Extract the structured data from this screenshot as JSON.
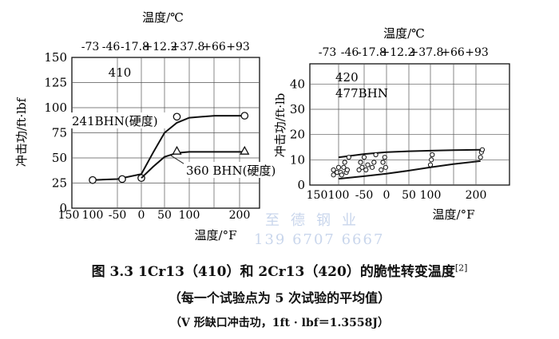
{
  "chart_data": [
    {
      "type": "line",
      "top_axis_label": "温度/℃",
      "top_ticks": [
        "-73",
        "-46",
        "-17.8",
        "+12.2",
        "+37.8",
        "+66",
        "+93"
      ],
      "xlabel": "温度/°F",
      "ylabel": "冲击功/ft·lbf",
      "x_ticks": [
        "150",
        "100",
        "-50",
        "0",
        "50",
        "100",
        "200"
      ],
      "y_ticks": [
        0,
        25,
        50,
        75,
        100,
        125,
        150
      ],
      "ylim": [
        0,
        150
      ],
      "grid": true,
      "annotation": "410",
      "series": [
        {
          "name": "241BHN(硬度)",
          "marker": "circle",
          "x": [
            -100,
            -40,
            0,
            75,
            210
          ],
          "y": [
            28,
            29,
            30,
            91,
            92
          ],
          "curve_x": [
            -100,
            -50,
            0,
            25,
            50,
            75,
            100,
            150,
            210
          ],
          "curve_y": [
            28,
            29,
            34,
            55,
            75,
            85,
            90,
            92,
            92
          ]
        },
        {
          "name": "360 BHN(硬度)",
          "marker": "triangle",
          "x": [
            75,
            210
          ],
          "y": [
            57,
            57
          ],
          "curve_x": [
            0,
            25,
            50,
            75,
            100,
            150,
            210
          ],
          "curve_y": [
            30,
            41,
            51,
            55,
            56,
            56,
            56
          ]
        }
      ]
    },
    {
      "type": "scatter",
      "top_axis_label": "温度/℃",
      "top_ticks": [
        "-73",
        "-46",
        "-17.8",
        "+12.2",
        "+37.8",
        "+66",
        "+93"
      ],
      "xlabel": "温度/°F",
      "ylabel": "冲击功/ft·lb",
      "x_ticks": [
        "150",
        "100",
        "-50",
        "0",
        "50",
        "100",
        "200"
      ],
      "y_ticks": [
        "0",
        "10",
        "20",
        "30",
        "40"
      ],
      "ylim": [
        0,
        48
      ],
      "grid": true,
      "annotation_lines": [
        "420",
        "477BHN"
      ],
      "band_upper": {
        "x": [
          -100,
          -50,
          0,
          50,
          100,
          150,
          210
        ],
        "y": [
          11,
          12.3,
          13,
          13.4,
          13.6,
          13.8,
          14
        ]
      },
      "band_lower": {
        "x": [
          -100,
          -50,
          0,
          50,
          100,
          150,
          210
        ],
        "y": [
          2.5,
          3.5,
          4.5,
          5.7,
          7,
          8.3,
          9.5
        ]
      },
      "points": [
        {
          "x": -110,
          "y": 4
        },
        {
          "x": -110,
          "y": 6
        },
        {
          "x": -103,
          "y": 5
        },
        {
          "x": -100,
          "y": 7
        },
        {
          "x": -96,
          "y": 5
        },
        {
          "x": -94,
          "y": 4
        },
        {
          "x": -90,
          "y": 7
        },
        {
          "x": -88,
          "y": 9
        },
        {
          "x": -85,
          "y": 5
        },
        {
          "x": -83,
          "y": 6
        },
        {
          "x": -80,
          "y": 11
        },
        {
          "x": -60,
          "y": 6
        },
        {
          "x": -57,
          "y": 9
        },
        {
          "x": -54,
          "y": 7
        },
        {
          "x": -50,
          "y": 11
        },
        {
          "x": -46,
          "y": 6
        },
        {
          "x": -42,
          "y": 8
        },
        {
          "x": -32,
          "y": 7
        },
        {
          "x": -28,
          "y": 9
        },
        {
          "x": -24,
          "y": 12
        },
        {
          "x": -12,
          "y": 6
        },
        {
          "x": -8,
          "y": 9
        },
        {
          "x": -4,
          "y": 11
        },
        {
          "x": -2,
          "y": 7
        },
        {
          "x": 100,
          "y": 8
        },
        {
          "x": 102,
          "y": 10
        },
        {
          "x": 104,
          "y": 12
        },
        {
          "x": 210,
          "y": 11
        },
        {
          "x": 212,
          "y": 13
        },
        {
          "x": 214,
          "y": 14
        }
      ]
    }
  ],
  "caption": {
    "line1": "图 3.3   1Cr13（410）和 2Cr13（420）的脆性转变温度",
    "ref": "[2]",
    "line2": "（每一个试验点为 5 次试验的平均值）",
    "line3": "（V 形缺口冲击功，1ft · lbf＝1.3558J）"
  },
  "watermark": {
    "line1": "至德钢业",
    "line2": "139 6707 6667"
  }
}
